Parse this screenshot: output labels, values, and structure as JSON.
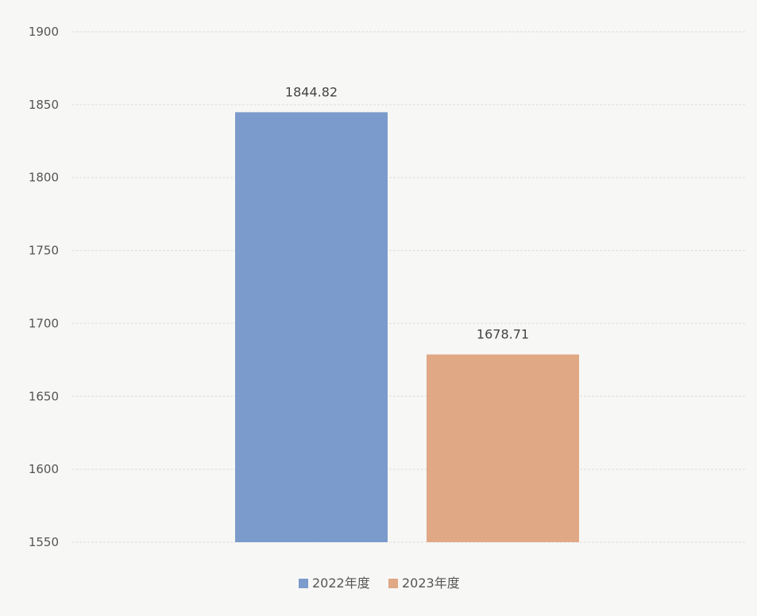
{
  "chart_data": {
    "type": "bar",
    "categories": [
      "2022年度",
      "2023年度"
    ],
    "values": [
      1844.82,
      1678.71
    ],
    "data_labels": [
      "1844.82",
      "1678.71"
    ],
    "colors": [
      "#7b9bcc",
      "#e0a884"
    ],
    "ylim": [
      1550,
      1900
    ],
    "yticks": [
      1900,
      1850,
      1800,
      1750,
      1700,
      1650,
      1600,
      1550
    ],
    "grid": true,
    "legend": {
      "position": "bottom-center",
      "entries": [
        "2022年度",
        "2023年度"
      ]
    },
    "title": "",
    "xlabel": "",
    "ylabel": ""
  }
}
